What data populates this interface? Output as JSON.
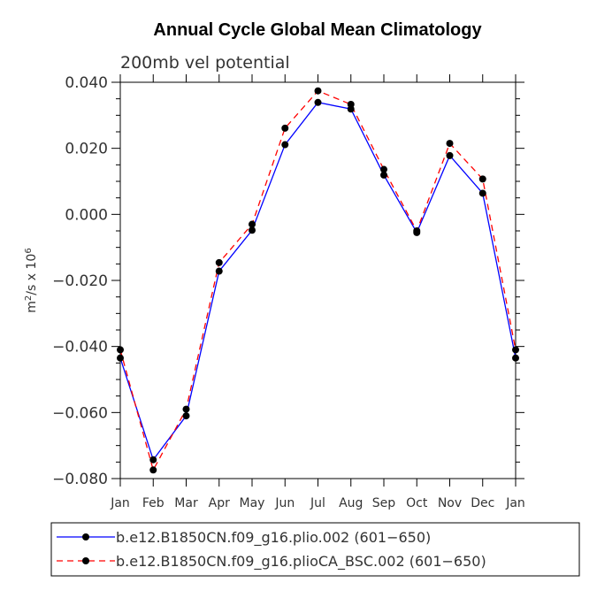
{
  "chart_data": {
    "type": "line",
    "title": "Annual Cycle Global Mean Climatology",
    "subtitle": "200mb vel potential",
    "xlabel": "",
    "ylabel_base": "m",
    "ylabel_exp1": "2",
    "ylabel_mid": "/s x 10",
    "ylabel_exp2": "6",
    "categories": [
      "Jan",
      "Feb",
      "Mar",
      "Apr",
      "May",
      "Jun",
      "Jul",
      "Aug",
      "Sep",
      "Oct",
      "Nov",
      "Dec",
      "Jan"
    ],
    "ylim": [
      -0.08,
      0.04
    ],
    "yticks": [
      0.04,
      0.02,
      0.0,
      -0.02,
      -0.04,
      -0.06,
      -0.08
    ],
    "ytick_labels": [
      "0.040",
      "0.020",
      "0.000",
      "−0.020",
      "−0.040",
      "−0.060",
      "−0.080"
    ],
    "series": [
      {
        "name": "b.e12.B1850CN.f09_g16.plio.002 (601−650)",
        "color": "#0000ff",
        "dash": "solid",
        "values": [
          -0.0435,
          -0.0743,
          -0.061,
          -0.0172,
          -0.0048,
          0.0211,
          0.0339,
          0.0319,
          0.0119,
          -0.0055,
          0.0178,
          0.0064,
          -0.0435
        ]
      },
      {
        "name": "b.e12.B1850CN.f09_g16.plioCA_BSC.002 (601−650)",
        "color": "#ff0000",
        "dash": "dashed",
        "values": [
          -0.041,
          -0.0774,
          -0.059,
          -0.0146,
          -0.003,
          0.0261,
          0.0374,
          0.0333,
          0.0136,
          -0.005,
          0.0215,
          0.0107,
          -0.041
        ]
      }
    ]
  }
}
